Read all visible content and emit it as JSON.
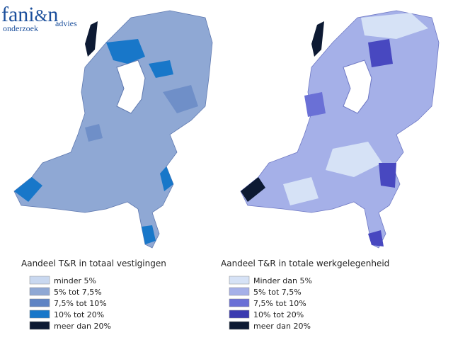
{
  "logo": {
    "parts": [
      "fani",
      "&",
      "n"
    ],
    "left": "onderzoek",
    "right": "advies"
  },
  "maps": [
    {
      "title": "Aandeel T&R in totaal vestigingen",
      "legend": [
        "minder 5%",
        "5% tot 7,5%",
        "7,5% tot 10%",
        "10% tot 20%",
        "meer dan 20%"
      ]
    },
    {
      "title": "Aandeel T&R in totale werkgelegenheid",
      "legend": [
        "Minder dan 5%",
        "5% tot 7,5%",
        "7,5% tot 10%",
        "10% tot 20%",
        "meer dan 20%"
      ]
    }
  ]
}
